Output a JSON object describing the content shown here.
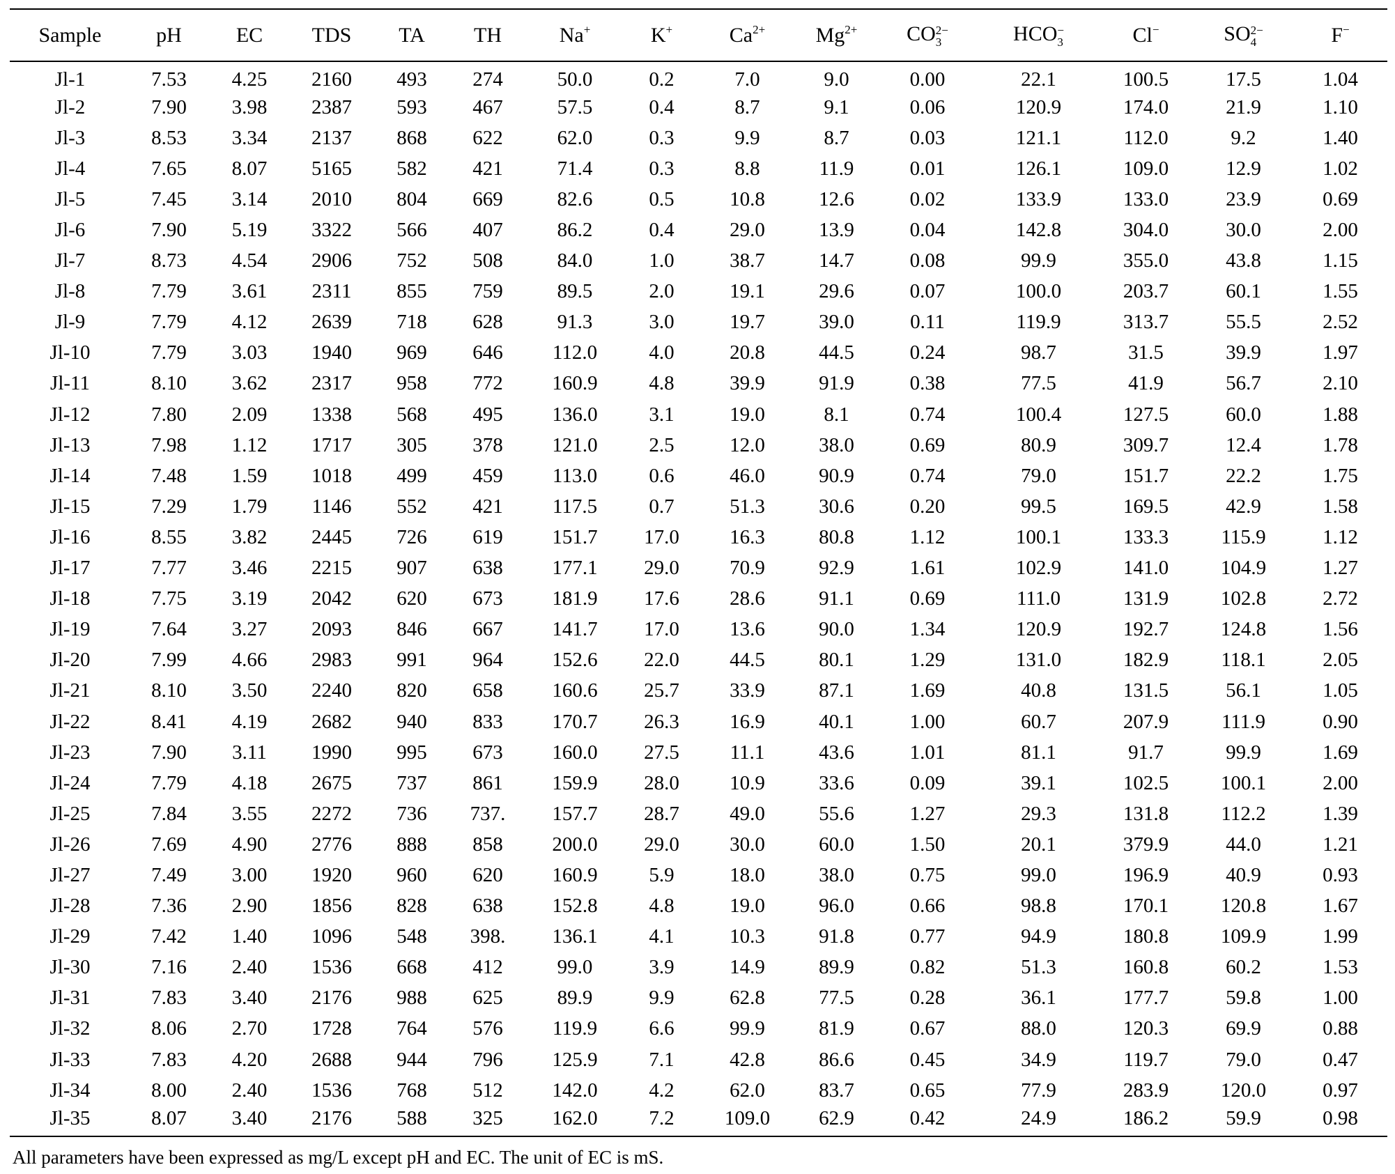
{
  "table": {
    "columns": [
      {
        "key": "sample",
        "base": "Sample",
        "sup": "",
        "sub": ""
      },
      {
        "key": "ph",
        "base": "pH",
        "sup": "",
        "sub": ""
      },
      {
        "key": "ec",
        "base": "EC",
        "sup": "",
        "sub": ""
      },
      {
        "key": "tds",
        "base": "TDS",
        "sup": "",
        "sub": ""
      },
      {
        "key": "ta",
        "base": "TA",
        "sup": "",
        "sub": ""
      },
      {
        "key": "th",
        "base": "TH",
        "sup": "",
        "sub": ""
      },
      {
        "key": "na",
        "base": "Na",
        "sup": "+",
        "sub": ""
      },
      {
        "key": "k",
        "base": "K",
        "sup": "+",
        "sub": ""
      },
      {
        "key": "ca",
        "base": "Ca",
        "sup": "2+",
        "sub": ""
      },
      {
        "key": "mg",
        "base": "Mg",
        "sup": "2+",
        "sub": ""
      },
      {
        "key": "co3",
        "base": "CO",
        "sup": "2−",
        "sub": "3"
      },
      {
        "key": "hco3",
        "base": "HCO",
        "sup": "−",
        "sub": "3"
      },
      {
        "key": "cl",
        "base": "Cl",
        "sup": "−",
        "sub": ""
      },
      {
        "key": "so4",
        "base": "SO",
        "sup": "2−",
        "sub": "4"
      },
      {
        "key": "f",
        "base": "F",
        "sup": "−",
        "sub": ""
      }
    ],
    "rows": [
      [
        "Jl-1",
        "7.53",
        "4.25",
        "2160",
        "493",
        "274",
        "50.0",
        "0.2",
        "7.0",
        "9.0",
        "0.00",
        "22.1",
        "100.5",
        "17.5",
        "1.04"
      ],
      [
        "Jl-2",
        "7.90",
        "3.98",
        "2387",
        "593",
        "467",
        "57.5",
        "0.4",
        "8.7",
        "9.1",
        "0.06",
        "120.9",
        "174.0",
        "21.9",
        "1.10"
      ],
      [
        "Jl-3",
        "8.53",
        "3.34",
        "2137",
        "868",
        "622",
        "62.0",
        "0.3",
        "9.9",
        "8.7",
        "0.03",
        "121.1",
        "112.0",
        "9.2",
        "1.40"
      ],
      [
        "Jl-4",
        "7.65",
        "8.07",
        "5165",
        "582",
        "421",
        "71.4",
        "0.3",
        "8.8",
        "11.9",
        "0.01",
        "126.1",
        "109.0",
        "12.9",
        "1.02"
      ],
      [
        "Jl-5",
        "7.45",
        "3.14",
        "2010",
        "804",
        "669",
        "82.6",
        "0.5",
        "10.8",
        "12.6",
        "0.02",
        "133.9",
        "133.0",
        "23.9",
        "0.69"
      ],
      [
        "Jl-6",
        "7.90",
        "5.19",
        "3322",
        "566",
        "407",
        "86.2",
        "0.4",
        "29.0",
        "13.9",
        "0.04",
        "142.8",
        "304.0",
        "30.0",
        "2.00"
      ],
      [
        "Jl-7",
        "8.73",
        "4.54",
        "2906",
        "752",
        "508",
        "84.0",
        "1.0",
        "38.7",
        "14.7",
        "0.08",
        "99.9",
        "355.0",
        "43.8",
        "1.15"
      ],
      [
        "Jl-8",
        "7.79",
        "3.61",
        "2311",
        "855",
        "759",
        "89.5",
        "2.0",
        "19.1",
        "29.6",
        "0.07",
        "100.0",
        "203.7",
        "60.1",
        "1.55"
      ],
      [
        "Jl-9",
        "7.79",
        "4.12",
        "2639",
        "718",
        "628",
        "91.3",
        "3.0",
        "19.7",
        "39.0",
        "0.11",
        "119.9",
        "313.7",
        "55.5",
        "2.52"
      ],
      [
        "Jl-10",
        "7.79",
        "3.03",
        "1940",
        "969",
        "646",
        "112.0",
        "4.0",
        "20.8",
        "44.5",
        "0.24",
        "98.7",
        "31.5",
        "39.9",
        "1.97"
      ],
      [
        "Jl-11",
        "8.10",
        "3.62",
        "2317",
        "958",
        "772",
        "160.9",
        "4.8",
        "39.9",
        "91.9",
        "0.38",
        "77.5",
        "41.9",
        "56.7",
        "2.10"
      ],
      [
        "Jl-12",
        "7.80",
        "2.09",
        "1338",
        "568",
        "495",
        "136.0",
        "3.1",
        "19.0",
        "8.1",
        "0.74",
        "100.4",
        "127.5",
        "60.0",
        "1.88"
      ],
      [
        "Jl-13",
        "7.98",
        "1.12",
        "1717",
        "305",
        "378",
        "121.0",
        "2.5",
        "12.0",
        "38.0",
        "0.69",
        "80.9",
        "309.7",
        "12.4",
        "1.78"
      ],
      [
        "Jl-14",
        "7.48",
        "1.59",
        "1018",
        "499",
        "459",
        "113.0",
        "0.6",
        "46.0",
        "90.9",
        "0.74",
        "79.0",
        "151.7",
        "22.2",
        "1.75"
      ],
      [
        "Jl-15",
        "7.29",
        "1.79",
        "1146",
        "552",
        "421",
        "117.5",
        "0.7",
        "51.3",
        "30.6",
        "0.20",
        "99.5",
        "169.5",
        "42.9",
        "1.58"
      ],
      [
        "Jl-16",
        "8.55",
        "3.82",
        "2445",
        "726",
        "619",
        "151.7",
        "17.0",
        "16.3",
        "80.8",
        "1.12",
        "100.1",
        "133.3",
        "115.9",
        "1.12"
      ],
      [
        "Jl-17",
        "7.77",
        "3.46",
        "2215",
        "907",
        "638",
        "177.1",
        "29.0",
        "70.9",
        "92.9",
        "1.61",
        "102.9",
        "141.0",
        "104.9",
        "1.27"
      ],
      [
        "Jl-18",
        "7.75",
        "3.19",
        "2042",
        "620",
        "673",
        "181.9",
        "17.6",
        "28.6",
        "91.1",
        "0.69",
        "111.0",
        "131.9",
        "102.8",
        "2.72"
      ],
      [
        "Jl-19",
        "7.64",
        "3.27",
        "2093",
        "846",
        "667",
        "141.7",
        "17.0",
        "13.6",
        "90.0",
        "1.34",
        "120.9",
        "192.7",
        "124.8",
        "1.56"
      ],
      [
        "Jl-20",
        "7.99",
        "4.66",
        "2983",
        "991",
        "964",
        "152.6",
        "22.0",
        "44.5",
        "80.1",
        "1.29",
        "131.0",
        "182.9",
        "118.1",
        "2.05"
      ],
      [
        "Jl-21",
        "8.10",
        "3.50",
        "2240",
        "820",
        "658",
        "160.6",
        "25.7",
        "33.9",
        "87.1",
        "1.69",
        "40.8",
        "131.5",
        "56.1",
        "1.05"
      ],
      [
        "Jl-22",
        "8.41",
        "4.19",
        "2682",
        "940",
        "833",
        "170.7",
        "26.3",
        "16.9",
        "40.1",
        "1.00",
        "60.7",
        "207.9",
        "111.9",
        "0.90"
      ],
      [
        "Jl-23",
        "7.90",
        "3.11",
        "1990",
        "995",
        "673",
        "160.0",
        "27.5",
        "11.1",
        "43.6",
        "1.01",
        "81.1",
        "91.7",
        "99.9",
        "1.69"
      ],
      [
        "Jl-24",
        "7.79",
        "4.18",
        "2675",
        "737",
        "861",
        "159.9",
        "28.0",
        "10.9",
        "33.6",
        "0.09",
        "39.1",
        "102.5",
        "100.1",
        "2.00"
      ],
      [
        "Jl-25",
        "7.84",
        "3.55",
        "2272",
        "736",
        "737.",
        "157.7",
        "28.7",
        "49.0",
        "55.6",
        "1.27",
        "29.3",
        "131.8",
        "112.2",
        "1.39"
      ],
      [
        "Jl-26",
        "7.69",
        "4.90",
        "2776",
        "888",
        "858",
        "200.0",
        "29.0",
        "30.0",
        "60.0",
        "1.50",
        "20.1",
        "379.9",
        "44.0",
        "1.21"
      ],
      [
        "Jl-27",
        "7.49",
        "3.00",
        "1920",
        "960",
        "620",
        "160.9",
        "5.9",
        "18.0",
        "38.0",
        "0.75",
        "99.0",
        "196.9",
        "40.9",
        "0.93"
      ],
      [
        "Jl-28",
        "7.36",
        "2.90",
        "1856",
        "828",
        "638",
        "152.8",
        "4.8",
        "19.0",
        "96.0",
        "0.66",
        "98.8",
        "170.1",
        "120.8",
        "1.67"
      ],
      [
        "Jl-29",
        "7.42",
        "1.40",
        "1096",
        "548",
        "398.",
        "136.1",
        "4.1",
        "10.3",
        "91.8",
        "0.77",
        "94.9",
        "180.8",
        "109.9",
        "1.99"
      ],
      [
        "Jl-30",
        "7.16",
        "2.40",
        "1536",
        "668",
        "412",
        "99.0",
        "3.9",
        "14.9",
        "89.9",
        "0.82",
        "51.3",
        "160.8",
        "60.2",
        "1.53"
      ],
      [
        "Jl-31",
        "7.83",
        "3.40",
        "2176",
        "988",
        "625",
        "89.9",
        "9.9",
        "62.8",
        "77.5",
        "0.28",
        "36.1",
        "177.7",
        "59.8",
        "1.00"
      ],
      [
        "Jl-32",
        "8.06",
        "2.70",
        "1728",
        "764",
        "576",
        "119.9",
        "6.6",
        "99.9",
        "81.9",
        "0.67",
        "88.0",
        "120.3",
        "69.9",
        "0.88"
      ],
      [
        "Jl-33",
        "7.83",
        "4.20",
        "2688",
        "944",
        "796",
        "125.9",
        "7.1",
        "42.8",
        "86.6",
        "0.45",
        "34.9",
        "119.7",
        "79.0",
        "0.47"
      ],
      [
        "Jl-34",
        "8.00",
        "2.40",
        "1536",
        "768",
        "512",
        "142.0",
        "4.2",
        "62.0",
        "83.7",
        "0.65",
        "77.9",
        "283.9",
        "120.0",
        "0.97"
      ],
      [
        "Jl-35",
        "8.07",
        "3.40",
        "2176",
        "588",
        "325",
        "162.0",
        "7.2",
        "109.0",
        "62.9",
        "0.42",
        "24.9",
        "186.2",
        "59.9",
        "0.98"
      ]
    ]
  },
  "footnote": "All parameters have been expressed as mg/L except pH and EC. The unit of EC is mS."
}
